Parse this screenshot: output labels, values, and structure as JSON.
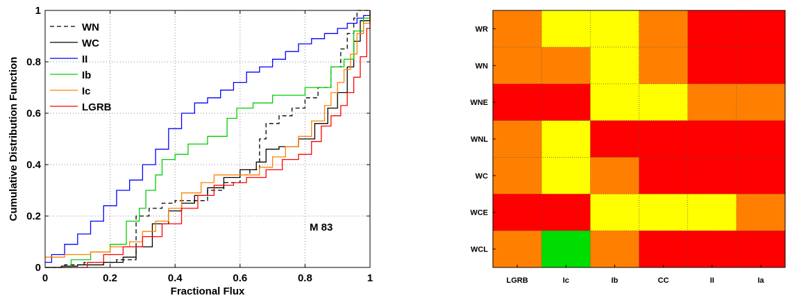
{
  "chart_data": [
    {
      "type": "line",
      "step": true,
      "annotation": "M 83",
      "xlabel": "Fractional Flux",
      "ylabel": "Cumulative Distribution Function",
      "xlim": [
        0,
        1
      ],
      "ylim": [
        0,
        1
      ],
      "xticks": [
        "0",
        "0.2",
        "0.4",
        "0.6",
        "0.8",
        "1"
      ],
      "yticks": [
        "0",
        "0.2",
        "0.4",
        "0.6",
        "0.8",
        "1"
      ],
      "grid": true,
      "legend": "top-left",
      "series": [
        {
          "name": "WN",
          "color": "#000000",
          "dashed": true,
          "x": [
            0,
            0.06,
            0.12,
            0.22,
            0.28,
            0.32,
            0.36,
            0.4,
            0.45,
            0.5,
            0.55,
            0.6,
            0.63,
            0.66,
            0.68,
            0.72,
            0.76,
            0.8,
            0.84,
            0.88,
            0.91,
            0.93,
            0.95,
            0.96,
            1.0
          ],
          "y": [
            0,
            0.01,
            0.02,
            0.03,
            0.2,
            0.23,
            0.25,
            0.26,
            0.26,
            0.3,
            0.33,
            0.36,
            0.38,
            0.5,
            0.56,
            0.59,
            0.62,
            0.66,
            0.7,
            0.78,
            0.85,
            0.91,
            0.97,
            1.0,
            1.0
          ]
        },
        {
          "name": "WC",
          "color": "#000000",
          "dashed": false,
          "x": [
            0,
            0.05,
            0.1,
            0.18,
            0.24,
            0.28,
            0.33,
            0.38,
            0.42,
            0.46,
            0.5,
            0.55,
            0.6,
            0.65,
            0.68,
            0.72,
            0.78,
            0.83,
            0.87,
            0.9,
            0.93,
            0.95,
            0.97,
            1.0
          ],
          "y": [
            0,
            0.005,
            0.01,
            0.02,
            0.04,
            0.08,
            0.17,
            0.22,
            0.25,
            0.28,
            0.31,
            0.35,
            0.38,
            0.41,
            0.46,
            0.47,
            0.5,
            0.56,
            0.62,
            0.68,
            0.78,
            0.88,
            0.96,
            1.0
          ]
        },
        {
          "name": "II",
          "color": "#0000ff",
          "dashed": false,
          "x": [
            0,
            0.02,
            0.06,
            0.1,
            0.14,
            0.18,
            0.22,
            0.26,
            0.3,
            0.34,
            0.38,
            0.42,
            0.46,
            0.5,
            0.54,
            0.58,
            0.62,
            0.66,
            0.7,
            0.74,
            0.78,
            0.82,
            0.86,
            0.9,
            0.93,
            0.96,
            0.98,
            1.0
          ],
          "y": [
            0.02,
            0.05,
            0.09,
            0.13,
            0.18,
            0.24,
            0.3,
            0.34,
            0.4,
            0.46,
            0.54,
            0.6,
            0.64,
            0.66,
            0.69,
            0.72,
            0.76,
            0.78,
            0.81,
            0.84,
            0.87,
            0.89,
            0.91,
            0.93,
            0.95,
            0.97,
            0.98,
            1.0
          ]
        },
        {
          "name": "Ib",
          "color": "#00cc00",
          "dashed": false,
          "x": [
            0,
            0.08,
            0.14,
            0.2,
            0.25,
            0.29,
            0.31,
            0.34,
            0.36,
            0.4,
            0.44,
            0.5,
            0.56,
            0.59,
            0.64,
            0.7,
            0.8,
            0.88,
            0.92,
            0.95,
            0.98,
            1.0
          ],
          "y": [
            0,
            0.03,
            0.06,
            0.09,
            0.18,
            0.23,
            0.3,
            0.36,
            0.42,
            0.44,
            0.48,
            0.51,
            0.58,
            0.62,
            0.64,
            0.67,
            0.7,
            0.78,
            0.81,
            0.92,
            0.97,
            1.0
          ]
        },
        {
          "name": "Ic",
          "color": "#ff8000",
          "dashed": false,
          "x": [
            0,
            0.06,
            0.14,
            0.2,
            0.26,
            0.3,
            0.34,
            0.38,
            0.42,
            0.48,
            0.52,
            0.6,
            0.66,
            0.7,
            0.74,
            0.78,
            0.82,
            0.86,
            0.88,
            0.9,
            0.92,
            0.94,
            0.96,
            0.98,
            1.0
          ],
          "y": [
            0.04,
            0.05,
            0.06,
            0.08,
            0.1,
            0.14,
            0.18,
            0.23,
            0.29,
            0.33,
            0.36,
            0.36,
            0.39,
            0.43,
            0.47,
            0.51,
            0.57,
            0.63,
            0.68,
            0.72,
            0.77,
            0.83,
            0.91,
            0.95,
            1.0
          ]
        },
        {
          "name": "LGRB",
          "color": "#ff0000",
          "dashed": false,
          "x": [
            0,
            0.13,
            0.18,
            0.24,
            0.3,
            0.36,
            0.42,
            0.47,
            0.52,
            0.58,
            0.62,
            0.68,
            0.73,
            0.78,
            0.82,
            0.85,
            0.88,
            0.91,
            0.93,
            0.95,
            0.97,
            0.99,
            1.0
          ],
          "y": [
            0,
            0.02,
            0.05,
            0.08,
            0.12,
            0.17,
            0.23,
            0.28,
            0.32,
            0.33,
            0.35,
            0.38,
            0.42,
            0.44,
            0.49,
            0.55,
            0.59,
            0.63,
            0.68,
            0.74,
            0.82,
            0.93,
            1.0
          ]
        }
      ]
    },
    {
      "type": "heatmap",
      "rows": [
        "WR",
        "WN",
        "WNE",
        "WNL",
        "WC",
        "WCE",
        "WCL"
      ],
      "columns": [
        "LGRB",
        "Ic",
        "Ib",
        "CC",
        "II",
        "Ia"
      ],
      "cells": [
        [
          "orange",
          "yellow",
          "yellow",
          "orange",
          "red",
          "red"
        ],
        [
          "orange",
          "orange",
          "yellow",
          "orange",
          "red",
          "red"
        ],
        [
          "red",
          "red",
          "yellow",
          "yellow",
          "orange",
          "orange"
        ],
        [
          "orange",
          "yellow",
          "red",
          "red",
          "red",
          "red"
        ],
        [
          "orange",
          "yellow",
          "orange",
          "red",
          "red",
          "red"
        ],
        [
          "red",
          "red",
          "yellow",
          "yellow",
          "yellow",
          "orange"
        ],
        [
          "orange",
          "green",
          "orange",
          "red",
          "red",
          "red"
        ]
      ],
      "palette": {
        "red": "#ff0000",
        "orange": "#ff8000",
        "yellow": "#ffff00",
        "green": "#00dd00"
      }
    }
  ]
}
